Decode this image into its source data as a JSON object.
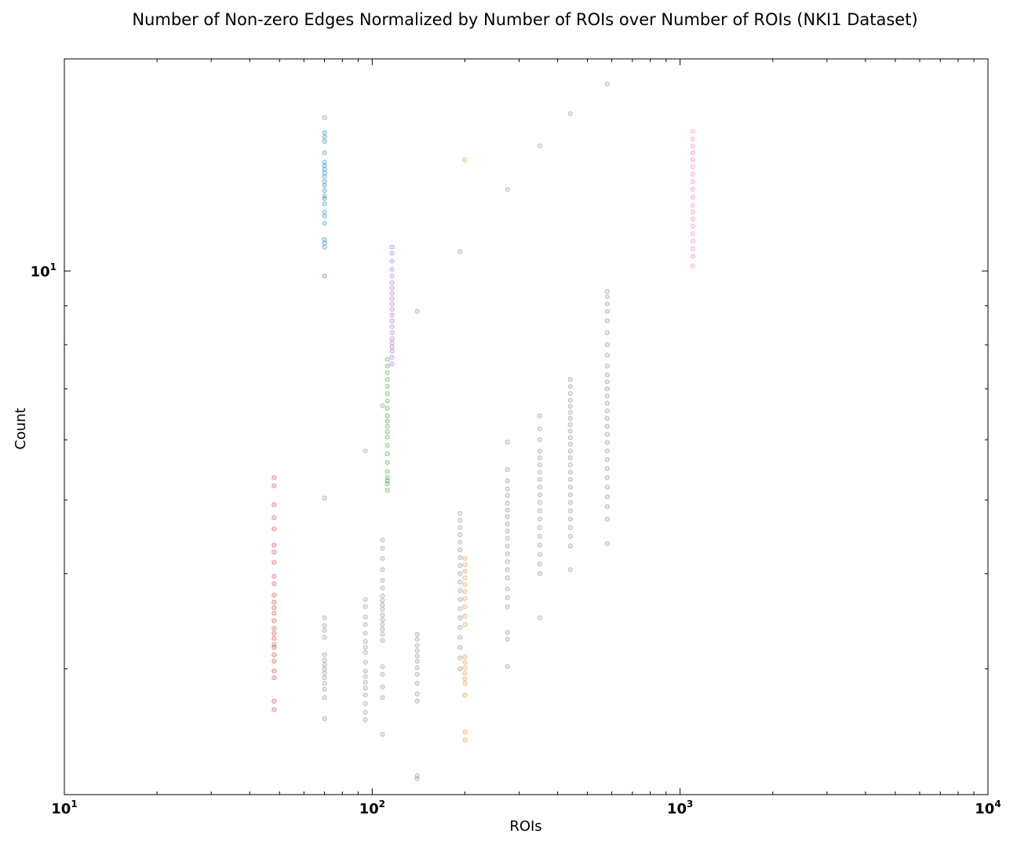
{
  "chart_data": {
    "type": "scatter",
    "title": "Number of Non-zero Edges Normalized by Number of ROIs over Number of ROIs (NKI1 Dataset)",
    "xlabel": "ROIs",
    "ylabel": "Count",
    "xscale": "log",
    "yscale": "log",
    "xlim": [
      10,
      10000
    ],
    "ylim": [
      2.05,
      19
    ],
    "grid": false,
    "x_ticks": [
      {
        "base": "10",
        "exp": "1",
        "value": 10
      },
      {
        "base": "10",
        "exp": "2",
        "value": 100
      },
      {
        "base": "10",
        "exp": "3",
        "value": 1000
      },
      {
        "base": "10",
        "exp": "4",
        "value": 10000
      }
    ],
    "y_ticks": [
      {
        "base": "10",
        "exp": "1",
        "value": 10
      }
    ],
    "series": [
      {
        "color": "#d62728",
        "x": 48,
        "values": [
          2.65,
          2.72,
          2.92,
          2.98,
          3.07,
          3.13,
          3.2,
          3.23,
          3.29,
          3.34,
          3.39,
          3.47,
          3.55,
          3.61,
          3.67,
          3.75,
          3.88,
          3.97,
          4.14,
          4.27,
          4.36,
          4.58,
          4.74,
          4.93,
          5.22,
          5.35
        ]
      },
      {
        "color": "#1f77b4",
        "x": 70,
        "values": [
          9.85,
          10.75,
          10.88,
          11.0,
          11.55,
          11.8,
          11.95,
          12.25,
          12.45,
          12.55,
          12.75,
          12.95,
          13.1,
          13.3,
          13.45,
          13.6,
          13.75,
          13.9,
          14.3,
          14.8,
          15.0,
          15.2
        ]
      },
      {
        "color": "#2ca02c",
        "x": 112,
        "values": [
          5.15,
          5.25,
          5.3,
          5.35,
          5.45,
          5.6,
          5.75,
          5.9,
          6.05,
          6.15,
          6.25,
          6.35,
          6.45,
          6.6,
          6.75,
          6.9,
          7.05,
          7.2,
          7.35,
          7.5,
          7.65
        ]
      },
      {
        "color": "#9467bd",
        "x": 116,
        "values": [
          7.55,
          7.7,
          7.85,
          7.95,
          8.05,
          8.15,
          8.3,
          8.45,
          8.6,
          8.75,
          8.9,
          9.05,
          9.2,
          9.35,
          9.5,
          9.65,
          9.85,
          10.05,
          10.3,
          10.55,
          10.75
        ]
      },
      {
        "color": "#ff7f0e",
        "x": 200,
        "values": [
          2.42,
          2.48,
          2.77,
          2.87,
          2.91,
          2.96,
          3.01,
          3.06,
          3.11,
          3.43,
          3.52,
          3.62,
          3.71,
          3.79,
          3.87,
          3.95,
          4.03,
          4.11,
          4.19,
          14.0
        ]
      },
      {
        "color": "#e377c2",
        "x": 1100,
        "values": [
          10.15,
          10.45,
          10.7,
          10.95,
          11.2,
          11.45,
          11.7,
          11.95,
          12.2,
          12.5,
          12.8,
          13.1,
          13.4,
          13.7,
          14.0,
          14.3,
          14.6,
          14.9,
          15.25
        ]
      },
      {
        "color": "#7f7f7f",
        "x": 70,
        "values": [
          2.58,
          2.75,
          2.82,
          2.87,
          2.92,
          2.96,
          3.0,
          3.04,
          3.08,
          3.13,
          3.3,
          3.37,
          3.42,
          3.5,
          5.03,
          15.9
        ]
      },
      {
        "color": "#7f7f7f",
        "x": 95,
        "values": [
          2.57,
          2.63,
          2.7,
          2.77,
          2.83,
          2.88,
          2.93,
          2.98,
          3.06,
          3.15,
          3.2,
          3.26,
          3.34,
          3.43,
          3.51,
          3.62,
          3.7,
          5.8
        ]
      },
      {
        "color": "#7f7f7f",
        "x": 108,
        "values": [
          2.46,
          2.75,
          2.84,
          2.95,
          3.02,
          3.27,
          3.33,
          3.38,
          3.43,
          3.48,
          3.53,
          3.59,
          3.64,
          3.69,
          3.74,
          3.83,
          3.92,
          4.05,
          4.19,
          4.32,
          4.43,
          6.65
        ]
      },
      {
        "color": "#7f7f7f",
        "x": 140,
        "values": [
          2.15,
          2.17,
          2.72,
          2.78,
          2.87,
          2.95,
          3.01,
          3.07,
          3.12,
          3.17,
          3.22,
          3.28,
          3.33,
          8.85
        ]
      },
      {
        "color": "#7f7f7f",
        "x": 193,
        "values": [
          3.0,
          3.1,
          3.2,
          3.3,
          3.4,
          3.5,
          3.6,
          3.7,
          3.8,
          3.9,
          4.0,
          4.1,
          4.2,
          4.3,
          4.4,
          4.5,
          4.6,
          4.7,
          4.8,
          10.6
        ]
      },
      {
        "color": "#7f7f7f",
        "x": 275,
        "values": [
          3.02,
          3.28,
          3.35,
          3.62,
          3.72,
          3.82,
          3.95,
          4.05,
          4.15,
          4.25,
          4.35,
          4.45,
          4.55,
          4.65,
          4.75,
          4.85,
          4.95,
          5.07,
          5.17,
          5.3,
          5.48,
          5.96,
          12.8
        ]
      },
      {
        "color": "#7f7f7f",
        "x": 350,
        "values": [
          3.5,
          4.0,
          4.12,
          4.24,
          4.36,
          4.48,
          4.6,
          4.72,
          4.84,
          4.96,
          5.08,
          5.2,
          5.32,
          5.44,
          5.56,
          5.68,
          5.8,
          6.0,
          6.2,
          6.45,
          14.6
        ]
      },
      {
        "color": "#7f7f7f",
        "x": 440,
        "values": [
          4.05,
          4.35,
          4.48,
          4.6,
          4.72,
          4.84,
          4.96,
          5.08,
          5.2,
          5.32,
          5.44,
          5.56,
          5.68,
          5.8,
          5.92,
          6.04,
          6.16,
          6.28,
          6.4,
          6.52,
          6.64,
          6.76,
          6.9,
          7.05,
          7.2,
          16.1
        ]
      },
      {
        "color": "#7f7f7f",
        "x": 580,
        "values": [
          4.38,
          4.72,
          4.9,
          5.05,
          5.2,
          5.35,
          5.5,
          5.65,
          5.8,
          5.95,
          6.1,
          6.25,
          6.4,
          6.55,
          6.7,
          6.85,
          7.0,
          7.15,
          7.3,
          7.5,
          7.75,
          8.0,
          8.3,
          8.6,
          8.85,
          9.05,
          9.25,
          9.4,
          17.6
        ]
      }
    ]
  }
}
